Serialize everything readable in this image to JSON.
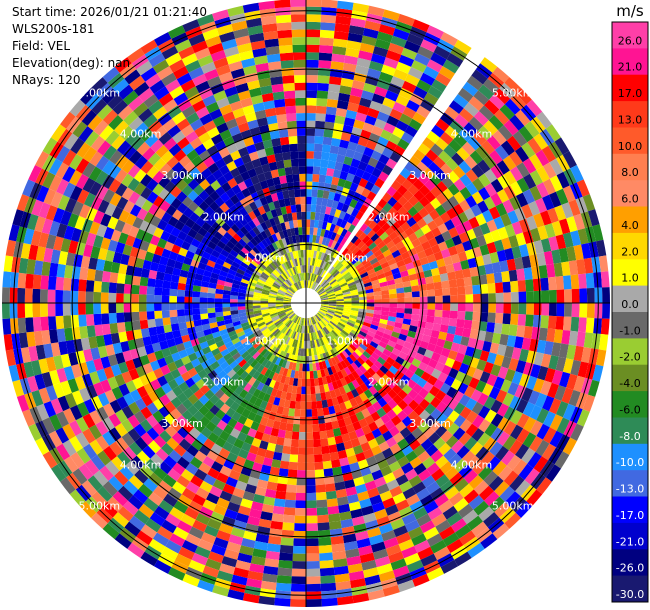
{
  "info": {
    "start_time": "Start time: 2026/01/21 01:21:40",
    "instrument": "WLS200s-181",
    "field": "Field: VEL",
    "elevation": "Elevation(deg): nan",
    "nrays": "NRays: 120"
  },
  "chart_data": {
    "type": "heatmap",
    "subtype": "radar-ppi",
    "range_rings_km": [
      1.0,
      2.0,
      3.0,
      4.0,
      5.0
    ],
    "ring_labels": [
      "1.00km",
      "2.00km",
      "3.00km",
      "4.00km",
      "5.00km"
    ],
    "rays": 120,
    "colorbar": {
      "unit": "m/s",
      "tick_labels": [
        "26.0",
        "21.0",
        "17.0",
        "13.0",
        "10.0",
        "8.0",
        "6.0",
        "4.0",
        "2.0",
        "1.0",
        "0.0",
        "-1.0",
        "-2.0",
        "-4.0",
        "-6.0",
        "-8.0",
        "-10.0",
        "-13.0",
        "-17.0",
        "-21.0",
        "-26.0",
        "-30.0"
      ],
      "colors": [
        "#ff3fa8",
        "#ff1493",
        "#ff0000",
        "#ff3a1a",
        "#ff5a2a",
        "#ff7f50",
        "#ff8a65",
        "#ff9f00",
        "#ffd800",
        "#ffff00",
        "#a9a9a9",
        "#696969",
        "#9acd32",
        "#6b8e23",
        "#228b22",
        "#2e8b57",
        "#1e90ff",
        "#4169e1",
        "#0000ff",
        "#0000cd",
        "#000080",
        "#191970"
      ]
    }
  },
  "colors": {
    "ring": "#000000",
    "label_on_chart": "#ffffff",
    "gap": "#ffffff"
  }
}
